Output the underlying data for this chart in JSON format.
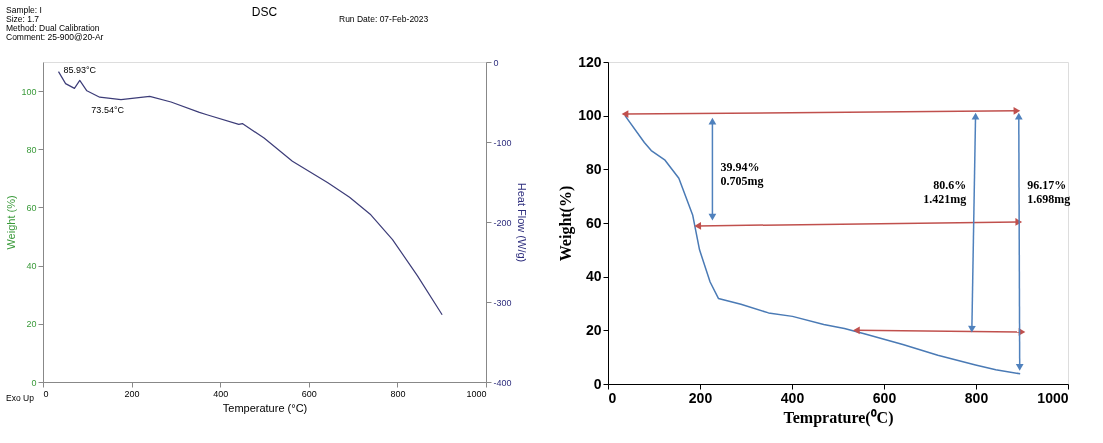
{
  "chart_data": [
    {
      "type": "line",
      "title": "DSC",
      "xlabel": "Temperature (°C)",
      "ylabel": "Weight (%)",
      "y2label": "Heat Flow (W/g)",
      "xlim": [
        0,
        1000
      ],
      "xticks": [
        0,
        200,
        400,
        600,
        800,
        1000
      ],
      "ylim": [
        0,
        110
      ],
      "yticks": [
        0,
        20,
        40,
        60,
        80,
        100
      ],
      "y2lim": [
        -400,
        0
      ],
      "y2ticks": [
        -400,
        -300,
        -200,
        -100,
        0
      ],
      "grid": false,
      "annotations": [
        "Sample: I",
        "Size: 1.7",
        "Method: Dual Calibration",
        "Comment: 25-900@20-Ar",
        "Run Date: 07-Feb-2023",
        "Exo Up",
        {
          "text": "85.93°C",
          "x": 83,
          "y": 103.7
        },
        {
          "text": "73.54°C",
          "x": 146,
          "y": 97.6
        }
      ],
      "series": [
        {
          "color": "#3c3c78",
          "axis": "y2",
          "x": [
            35,
            51,
            71,
            83,
            99,
            128,
            176,
            241,
            289,
            353,
            370,
            442,
            450,
            499,
            563,
            643,
            692,
            740,
            789,
            845,
            901
          ],
          "values": [
            -12,
            -27,
            -33,
            -23,
            -36,
            -44,
            -47,
            -43,
            -50,
            -63,
            -66,
            -78,
            -77,
            -95,
            -124,
            -151,
            -169,
            -191,
            -222,
            -267,
            -316
          ]
        }
      ]
    },
    {
      "type": "line",
      "xlabel": "Temprature(⁰C)",
      "ylabel": "Weight(%)",
      "xlim": [
        0,
        1000
      ],
      "xticks": [
        0,
        200,
        400,
        600,
        800,
        1000
      ],
      "ylim": [
        0,
        120
      ],
      "yticks": [
        0,
        20,
        40,
        60,
        80,
        100,
        120
      ],
      "grid": false,
      "annotations": [
        {
          "text": "39.94%\n0.705mg",
          "x": 227,
          "y": 81
        },
        {
          "text": "80.6%\n1.421mg",
          "x": 796,
          "y": 74
        },
        {
          "text": "96.17%\n1.698mg",
          "x": 894,
          "y": 74
        }
      ],
      "series": [
        {
          "color": "#4a7ab5",
          "x": [
            37,
            79,
            94,
            124,
            154,
            184,
            199,
            222,
            240,
            289,
            349,
            401,
            469,
            514,
            559,
            641,
            717,
            799,
            843,
            896
          ],
          "values": [
            100,
            90,
            87,
            83.4,
            76.7,
            63,
            50,
            38,
            31.9,
            29.7,
            26.5,
            25.2,
            22.2,
            20.7,
            18.6,
            14.7,
            10.7,
            7.1,
            5.3,
            3.8
          ]
        },
        {
          "color": "#c0504d",
          "marker": "triangle",
          "x": [
            37,
            889
          ],
          "values": [
            100.6,
            101.8
          ]
        },
        {
          "color": "#c0504d",
          "marker": "triangle",
          "x": [
            195,
            893
          ],
          "values": [
            58.9,
            60.4
          ]
        },
        {
          "color": "#c0504d",
          "marker": "triangle",
          "x": [
            540,
            900
          ],
          "values": [
            20,
            19.4
          ]
        },
        {
          "color": "#4f81bd",
          "marker": "triangle",
          "x": [
            227,
            227
          ],
          "values": [
            98,
            62.2
          ]
        },
        {
          "color": "#4f81bd",
          "marker": "triangle",
          "x": [
            799,
            791
          ],
          "values": [
            99.8,
            20.4
          ]
        },
        {
          "color": "#4f81bd",
          "marker": "triangle",
          "x": [
            893,
            895
          ],
          "values": [
            99.8,
            6.2
          ]
        }
      ]
    }
  ]
}
